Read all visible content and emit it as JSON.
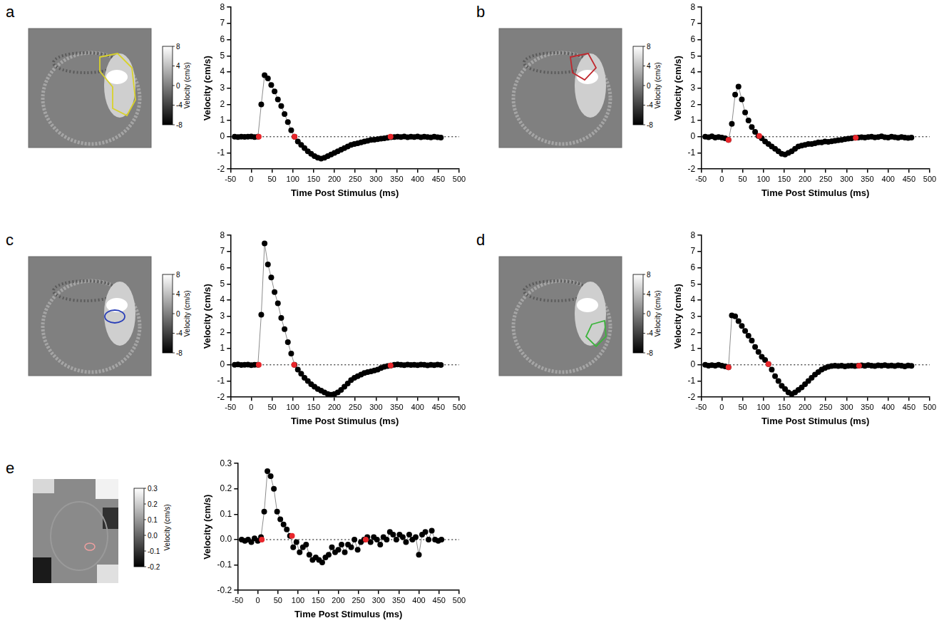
{
  "chart_data": [
    {
      "type": "scatter",
      "x_label": "Time Post Stimulus (ms)",
      "y_label": "Velocity (cm/s)",
      "grid": false,
      "xlim": [
        -50,
        500
      ],
      "xticks": [
        -50,
        0,
        50,
        100,
        150,
        200,
        250,
        300,
        350,
        400,
        450,
        500
      ],
      "ylim": [
        -2,
        8
      ],
      "yticks": [
        -2,
        -1,
        0,
        1,
        2,
        3,
        4,
        5,
        6,
        7,
        8
      ],
      "x": [
        -40,
        -32,
        -24,
        -16,
        -8,
        0,
        8,
        16,
        24,
        32,
        40,
        48,
        56,
        64,
        72,
        80,
        88,
        96,
        104,
        112,
        120,
        128,
        136,
        144,
        152,
        160,
        168,
        176,
        184,
        192,
        200,
        208,
        216,
        224,
        232,
        240,
        248,
        256,
        264,
        272,
        280,
        288,
        296,
        304,
        312,
        320,
        328,
        336,
        344,
        352,
        360,
        368,
        376,
        384,
        392,
        400,
        408,
        416,
        424,
        432,
        440,
        448,
        456
      ],
      "series": [
        {
          "color": "#000000",
          "marker": "circle",
          "line_style": "solid",
          "values": [
            0.0,
            -0.02,
            0.0,
            -0.01,
            0.0,
            0.01,
            -0.02,
            0.0,
            2.0,
            3.8,
            3.6,
            3.2,
            2.8,
            2.3,
            1.9,
            1.4,
            0.9,
            0.4,
            0.0,
            -0.3,
            -0.5,
            -0.7,
            -0.9,
            -1.05,
            -1.2,
            -1.3,
            -1.35,
            -1.3,
            -1.2,
            -1.1,
            -1.0,
            -0.9,
            -0.8,
            -0.7,
            -0.6,
            -0.5,
            -0.45,
            -0.4,
            -0.35,
            -0.3,
            -0.25,
            -0.2,
            -0.18,
            -0.15,
            -0.12,
            -0.1,
            -0.06,
            -0.03,
            -0.02,
            0.0,
            -0.02,
            0.01,
            -0.03,
            0.0,
            -0.02,
            0.01,
            -0.03,
            0.0,
            -0.02,
            -0.04,
            0.0,
            -0.03,
            -0.05
          ]
        },
        {
          "color": "#e8262b",
          "marker": "circle",
          "line_style": "none",
          "x": [
            18,
            104,
            335
          ],
          "values": [
            0.0,
            0.0,
            0.0
          ]
        }
      ]
    },
    {
      "type": "scatter",
      "x_label": "Time Post Stimulus (ms)",
      "y_label": "Velocity (cm/s)",
      "grid": false,
      "xlim": [
        -50,
        500
      ],
      "xticks": [
        -50,
        0,
        50,
        100,
        150,
        200,
        250,
        300,
        350,
        400,
        450,
        500
      ],
      "ylim": [
        -2,
        8
      ],
      "yticks": [
        -2,
        -1,
        0,
        1,
        2,
        3,
        4,
        5,
        6,
        7,
        8
      ],
      "x": [
        -40,
        -32,
        -24,
        -16,
        -8,
        0,
        8,
        16,
        24,
        32,
        40,
        48,
        56,
        64,
        72,
        80,
        88,
        96,
        104,
        112,
        120,
        128,
        136,
        144,
        152,
        160,
        168,
        176,
        184,
        192,
        200,
        208,
        216,
        224,
        232,
        240,
        248,
        256,
        264,
        272,
        280,
        288,
        296,
        304,
        312,
        320,
        328,
        336,
        344,
        352,
        360,
        368,
        376,
        384,
        392,
        400,
        408,
        416,
        424,
        432,
        440,
        448,
        456
      ],
      "series": [
        {
          "color": "#000000",
          "marker": "circle",
          "line_style": "solid",
          "values": [
            0.0,
            -0.03,
            0.02,
            -0.05,
            -0.02,
            -0.05,
            -0.1,
            -0.2,
            0.8,
            2.6,
            3.1,
            2.3,
            1.5,
            1.0,
            0.6,
            0.3,
            0.05,
            -0.1,
            -0.3,
            -0.45,
            -0.6,
            -0.75,
            -0.9,
            -1.05,
            -1.1,
            -1.0,
            -0.9,
            -0.75,
            -0.6,
            -0.55,
            -0.5,
            -0.45,
            -0.45,
            -0.4,
            -0.35,
            -0.35,
            -0.3,
            -0.32,
            -0.28,
            -0.25,
            -0.22,
            -0.2,
            -0.15,
            -0.12,
            -0.1,
            -0.06,
            -0.05,
            -0.03,
            -0.05,
            -0.02,
            0.0,
            -0.04,
            -0.02,
            0.02,
            -0.03,
            -0.05,
            0.0,
            -0.03,
            -0.06,
            -0.02,
            -0.05,
            -0.08,
            -0.05
          ]
        },
        {
          "color": "#e8262b",
          "marker": "circle",
          "line_style": "none",
          "x": [
            16,
            90,
            322
          ],
          "values": [
            -0.2,
            0.05,
            -0.06
          ]
        }
      ]
    },
    {
      "type": "scatter",
      "x_label": "Time Post Stimulus (ms)",
      "y_label": "Velocity (cm/s)",
      "grid": false,
      "xlim": [
        -50,
        500
      ],
      "xticks": [
        -50,
        0,
        50,
        100,
        150,
        200,
        250,
        300,
        350,
        400,
        450,
        500
      ],
      "ylim": [
        -2,
        8
      ],
      "yticks": [
        -2,
        -1,
        0,
        1,
        2,
        3,
        4,
        5,
        6,
        7,
        8
      ],
      "x": [
        -40,
        -32,
        -24,
        -16,
        -8,
        0,
        8,
        16,
        24,
        32,
        40,
        48,
        56,
        64,
        72,
        80,
        88,
        96,
        104,
        112,
        120,
        128,
        136,
        144,
        152,
        160,
        168,
        176,
        184,
        192,
        200,
        208,
        216,
        224,
        232,
        240,
        248,
        256,
        264,
        272,
        280,
        288,
        296,
        304,
        312,
        320,
        328,
        336,
        344,
        352,
        360,
        368,
        376,
        384,
        392,
        400,
        408,
        416,
        424,
        432,
        440,
        448,
        456
      ],
      "series": [
        {
          "color": "#000000",
          "marker": "circle",
          "line_style": "solid",
          "values": [
            0.0,
            0.02,
            -0.01,
            0.0,
            0.01,
            -0.02,
            0.0,
            0.0,
            3.1,
            7.5,
            6.2,
            5.4,
            4.5,
            3.8,
            2.9,
            2.2,
            1.4,
            0.7,
            0.0,
            -0.3,
            -0.55,
            -0.8,
            -1.0,
            -1.2,
            -1.35,
            -1.5,
            -1.6,
            -1.7,
            -1.8,
            -1.85,
            -1.8,
            -1.7,
            -1.55,
            -1.35,
            -1.15,
            -0.95,
            -0.8,
            -0.7,
            -0.6,
            -0.5,
            -0.45,
            -0.4,
            -0.35,
            -0.3,
            -0.2,
            -0.12,
            -0.08,
            -0.04,
            0.0,
            0.02,
            0.0,
            -0.02,
            0.01,
            -0.01,
            0.0,
            -0.02,
            0.01,
            0.0,
            -0.03,
            0.0,
            -0.02,
            0.01,
            -0.01
          ]
        },
        {
          "color": "#e8262b",
          "marker": "circle",
          "line_style": "none",
          "x": [
            18,
            103,
            335
          ],
          "values": [
            0.0,
            0.0,
            -0.04
          ]
        }
      ]
    },
    {
      "type": "scatter",
      "x_label": "Time Post Stimulus (ms)",
      "y_label": "Velocity (cm/s)",
      "grid": false,
      "xlim": [
        -50,
        500
      ],
      "xticks": [
        -50,
        0,
        50,
        100,
        150,
        200,
        250,
        300,
        350,
        400,
        450,
        500
      ],
      "ylim": [
        -2,
        8
      ],
      "yticks": [
        -2,
        -1,
        0,
        1,
        2,
        3,
        4,
        5,
        6,
        7,
        8
      ],
      "x": [
        -40,
        -32,
        -24,
        -16,
        -8,
        0,
        8,
        16,
        24,
        32,
        40,
        48,
        56,
        64,
        72,
        80,
        88,
        96,
        104,
        112,
        120,
        128,
        136,
        144,
        152,
        160,
        168,
        176,
        184,
        192,
        200,
        208,
        216,
        224,
        232,
        240,
        248,
        256,
        264,
        272,
        280,
        288,
        296,
        304,
        312,
        320,
        328,
        336,
        344,
        352,
        360,
        368,
        376,
        384,
        392,
        400,
        408,
        416,
        424,
        432,
        440,
        448,
        456
      ],
      "series": [
        {
          "color": "#000000",
          "marker": "circle",
          "line_style": "solid",
          "values": [
            0.0,
            -0.05,
            -0.02,
            -0.05,
            0.0,
            -0.05,
            -0.1,
            -0.15,
            3.05,
            3.0,
            2.7,
            2.4,
            2.1,
            1.8,
            1.5,
            1.1,
            0.8,
            0.5,
            0.3,
            0.05,
            -0.3,
            -0.7,
            -1.0,
            -1.3,
            -1.5,
            -1.7,
            -1.8,
            -1.7,
            -1.55,
            -1.4,
            -1.2,
            -1.0,
            -0.8,
            -0.6,
            -0.45,
            -0.3,
            -0.2,
            -0.12,
            -0.08,
            -0.05,
            -0.08,
            -0.05,
            -0.1,
            -0.06,
            -0.05,
            -0.08,
            -0.05,
            -0.03,
            -0.06,
            -0.02,
            -0.05,
            -0.08,
            -0.03,
            -0.05,
            -0.02,
            -0.06,
            -0.04,
            -0.08,
            -0.03,
            -0.05,
            -0.1,
            -0.04,
            -0.06
          ]
        },
        {
          "color": "#e8262b",
          "marker": "circle",
          "line_style": "none",
          "x": [
            16,
            112,
            330
          ],
          "values": [
            -0.15,
            0.05,
            -0.05
          ]
        }
      ]
    },
    {
      "type": "scatter",
      "x_label": "Time Post Stimulus (ms)",
      "y_label": "Velocity (cm/s)",
      "grid": false,
      "xlim": [
        -50,
        500
      ],
      "xticks": [
        -50,
        0,
        50,
        100,
        150,
        200,
        250,
        300,
        350,
        400,
        450,
        500
      ],
      "ylim": [
        -0.2,
        0.3
      ],
      "yticks": [
        -0.2,
        -0.1,
        {
          "value": 0,
          "label": "0.0"
        },
        0.1,
        0.2,
        0.3
      ],
      "x": [
        -40,
        -32,
        -24,
        -16,
        -8,
        0,
        8,
        16,
        24,
        32,
        40,
        48,
        56,
        64,
        72,
        80,
        88,
        96,
        104,
        112,
        120,
        128,
        136,
        144,
        152,
        160,
        168,
        176,
        184,
        192,
        200,
        208,
        216,
        224,
        232,
        240,
        248,
        256,
        264,
        272,
        280,
        288,
        296,
        304,
        312,
        320,
        328,
        336,
        344,
        352,
        360,
        368,
        376,
        384,
        392,
        400,
        408,
        416,
        424,
        432,
        440,
        448,
        456
      ],
      "series": [
        {
          "color": "#000000",
          "marker": "circle",
          "line_style": "solid",
          "values": [
            0.0,
            -0.005,
            0.0,
            -0.01,
            0.005,
            -0.005,
            0.01,
            0.11,
            0.27,
            0.25,
            0.2,
            0.11,
            0.08,
            0.06,
            0.04,
            0.015,
            -0.03,
            -0.01,
            -0.05,
            -0.03,
            -0.02,
            -0.06,
            -0.08,
            -0.07,
            -0.08,
            -0.09,
            -0.07,
            -0.06,
            -0.03,
            -0.05,
            -0.04,
            -0.02,
            -0.05,
            -0.02,
            -0.03,
            0.0,
            -0.04,
            -0.01,
            0.0,
            0.01,
            -0.01,
            0.01,
            0.0,
            -0.02,
            0.01,
            0.0,
            0.03,
            0.02,
            0.0,
            0.02,
            0.01,
            -0.01,
            0.02,
            0.0,
            0.01,
            -0.06,
            0.02,
            0.03,
            0.0,
            0.035,
            0.0,
            -0.005,
            0.0
          ]
        },
        {
          "color": "#e8262b",
          "marker": "circle",
          "line_style": "none",
          "x": [
            10,
            85,
            268
          ],
          "values": [
            0.0,
            0.015,
            0.0
          ]
        }
      ]
    }
  ],
  "images": [
    {
      "panel": "a",
      "outline_color": "#d9d22b",
      "colorbar": {
        "label": "Velocity (cm/s)",
        "range": [
          -8,
          8
        ],
        "ticks": [
          8,
          4,
          0,
          -4,
          -8
        ]
      }
    },
    {
      "panel": "b",
      "outline_color": "#c0272d",
      "colorbar": {
        "label": "Velocity (cm/s)",
        "range": [
          -8,
          8
        ],
        "ticks": [
          8,
          4,
          0,
          -4,
          -8
        ]
      }
    },
    {
      "panel": "c",
      "outline_color": "#2a3fb8",
      "colorbar": {
        "label": "Velocity (cm/s)",
        "range": [
          -8,
          8
        ],
        "ticks": [
          8,
          4,
          0,
          -4,
          -8
        ]
      }
    },
    {
      "panel": "d",
      "outline_color": "#3cb43c",
      "colorbar": {
        "label": "Velocity (cm/s)",
        "range": [
          -8,
          8
        ],
        "ticks": [
          8,
          4,
          0,
          -4,
          -8
        ]
      }
    },
    {
      "panel": "e",
      "outline_color": "#f0a0a0",
      "colorbar": {
        "label": "Velocity (cm/s)",
        "range": [
          -0.2,
          0.3
        ],
        "ticks": [
          0.3,
          0.2,
          0.1,
          {
            "value": 0,
            "label": "0.0"
          },
          -0.1,
          -0.2
        ]
      }
    }
  ]
}
